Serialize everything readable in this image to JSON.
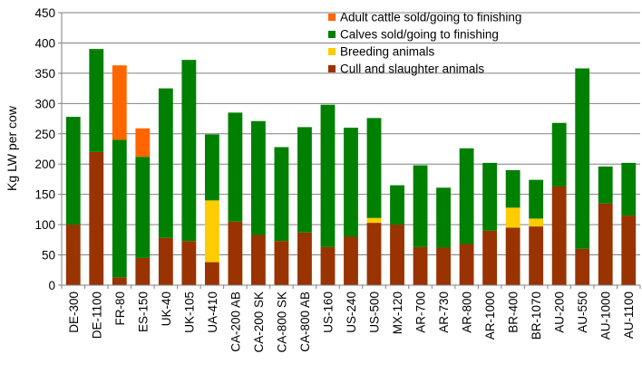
{
  "chart_data": {
    "type": "bar",
    "stacked": true,
    "ylabel": "Kg LW per cow",
    "xlabel": "",
    "ylim": [
      0,
      450
    ],
    "yticks": [
      0,
      50,
      100,
      150,
      200,
      250,
      300,
      350,
      400,
      450
    ],
    "grid": "horizontal",
    "legend_position": "top-right",
    "categories": [
      "DE-300",
      "DE-1100",
      "FR-80",
      "ES-150",
      "UK-40",
      "UK-105",
      "UA-410",
      "CA-200 AB",
      "CA-200 SK",
      "CA-800 SK",
      "CA-800 AB",
      "US-160",
      "US-240",
      "US-500",
      "MX-120",
      "AR-700",
      "AR-730",
      "AR-800",
      "AR-1000",
      "BR-400",
      "BR-1070",
      "AU-200",
      "AU-550",
      "AU-1000",
      "AU-1100"
    ],
    "series": [
      {
        "name": "Cull and slaughter animals",
        "color": "#993300",
        "values": [
          100,
          220,
          13,
          45,
          78,
          73,
          38,
          105,
          83,
          73,
          87,
          63,
          80,
          103,
          100,
          63,
          62,
          68,
          90,
          95,
          97,
          163,
          60,
          135,
          115
        ]
      },
      {
        "name": "Breeding animals",
        "color": "#ffcc00",
        "values": [
          0,
          0,
          0,
          0,
          0,
          0,
          102,
          0,
          0,
          0,
          0,
          0,
          0,
          8,
          0,
          0,
          0,
          0,
          0,
          33,
          13,
          0,
          0,
          0,
          0
        ]
      },
      {
        "name": "Calves sold/going to finishing",
        "color": "#008000",
        "values": [
          178,
          170,
          227,
          167,
          247,
          299,
          109,
          180,
          188,
          155,
          174,
          235,
          180,
          165,
          65,
          135,
          99,
          158,
          112,
          62,
          64,
          105,
          298,
          61,
          87
        ]
      },
      {
        "name": "Adult cattle sold/going to finishing",
        "color": "#ff6600",
        "values": [
          0,
          0,
          123,
          47,
          0,
          0,
          0,
          0,
          0,
          0,
          0,
          0,
          0,
          0,
          0,
          0,
          0,
          0,
          0,
          0,
          0,
          0,
          0,
          0,
          0
        ]
      }
    ],
    "legend_order": [
      "Adult cattle sold/going to finishing",
      "Calves sold/going to finishing",
      "Breeding animals",
      "Cull and slaughter animals"
    ]
  }
}
